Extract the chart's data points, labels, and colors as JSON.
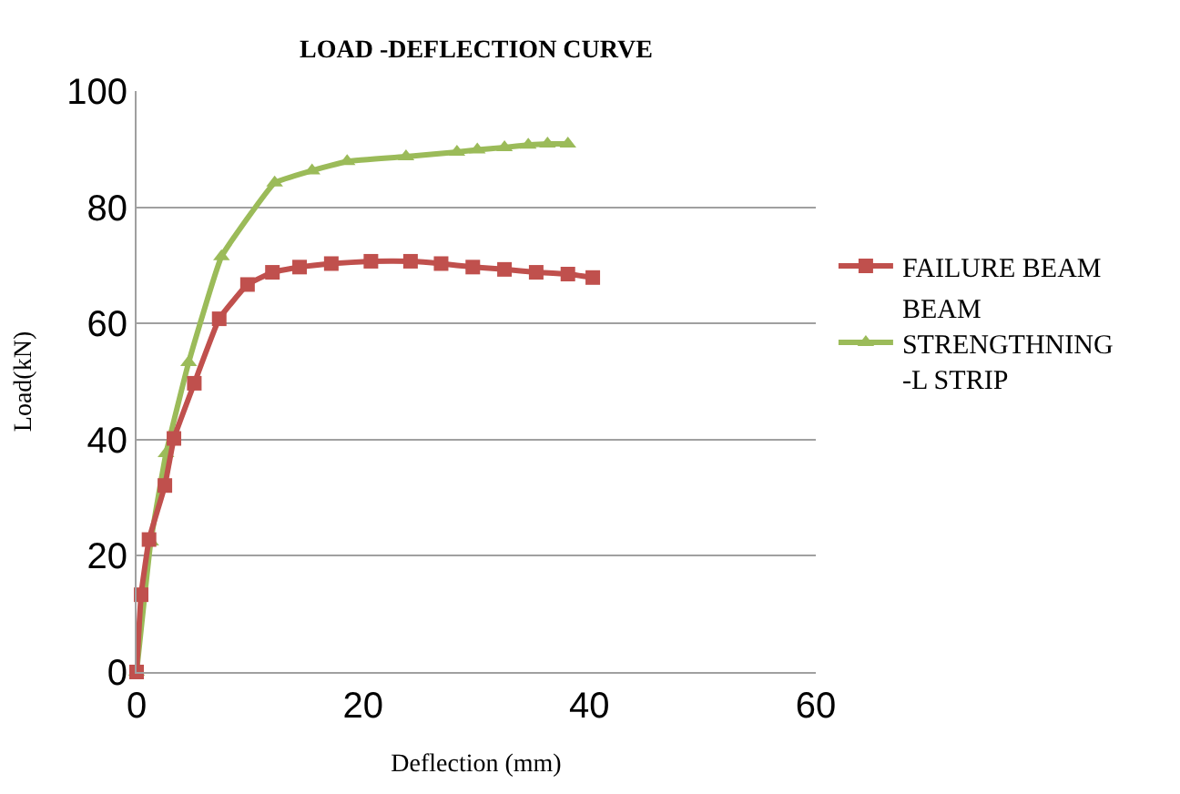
{
  "chart_data": {
    "type": "line",
    "title": "LOAD -DEFLECTION CURVE",
    "xlabel": "Deflection (mm)",
    "ylabel": "Load(kN)",
    "xlim": [
      0,
      60
    ],
    "xticks": [
      0,
      20,
      40,
      60
    ],
    "ylim": [
      0,
      100
    ],
    "yticks": [
      0,
      20,
      40,
      60,
      80,
      100
    ],
    "grid": "y",
    "legend": "right",
    "series": [
      {
        "name": "FAILURE BEAM",
        "color": "#c0504d",
        "marker": "square",
        "x": [
          0,
          0.4,
          1.1,
          2.5,
          3.3,
          5.1,
          7.3,
          9.8,
          12.0,
          14.4,
          17.2,
          20.7,
          24.2,
          26.9,
          29.7,
          32.5,
          35.3,
          38.1,
          40.3
        ],
        "values": [
          0,
          13.3,
          22.8,
          32.1,
          40.2,
          49.7,
          60.8,
          66.7,
          68.8,
          69.7,
          70.3,
          70.7,
          70.7,
          70.3,
          69.7,
          69.3,
          68.8,
          68.5,
          67.9
        ]
      },
      {
        "name": "BEAM STRENGTHNING -L STRIP",
        "color": "#9bbb59",
        "marker": "triangle",
        "x": [
          0,
          1.25,
          2.6,
          4.6,
          7.5,
          12.2,
          15.5,
          18.6,
          23.8,
          28.3,
          30.1,
          32.5,
          34.6,
          36.3,
          38.1
        ],
        "values": [
          0,
          22.4,
          37.6,
          53.3,
          71.5,
          84.2,
          86.3,
          87.9,
          88.7,
          89.5,
          89.9,
          90.3,
          90.7,
          90.9,
          90.9
        ]
      }
    ]
  }
}
